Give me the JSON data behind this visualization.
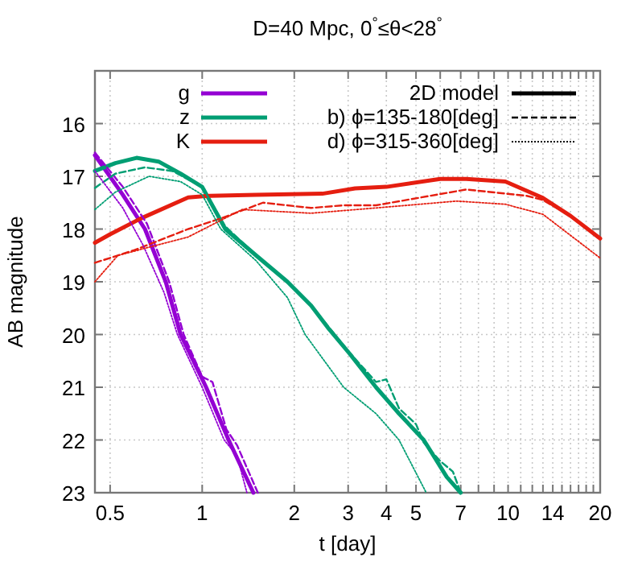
{
  "chart_data": {
    "type": "line",
    "title": "D=40 Mpc, 0$^{°}$≤θ<28$^{°}$",
    "xlabel": "t [day]",
    "ylabel": "AB magnitude",
    "log": "x",
    "grid": true,
    "legend": "top",
    "xlim": [
      0.446,
      20
    ],
    "ylim": [
      23,
      15
    ],
    "xticks": [
      0.5,
      1,
      2,
      3,
      4,
      5,
      {
        "value": 6,
        "label": null
      },
      7,
      {
        "value": 8,
        "label": null
      },
      {
        "value": 9,
        "label": null
      },
      10,
      {
        "value": 11,
        "label": null
      },
      {
        "value": 12,
        "label": null
      },
      {
        "value": 13,
        "label": null
      },
      14,
      {
        "value": 15,
        "label": null
      },
      {
        "value": 16,
        "label": null
      },
      {
        "value": 17,
        "label": null
      },
      {
        "value": 18,
        "label": null
      },
      {
        "value": 19,
        "label": null
      },
      20
    ],
    "yticks": [
      16,
      17,
      18,
      19,
      20,
      21,
      22,
      23
    ],
    "annotations": [
      "2D model",
      "b) ϕ=135-180[deg]",
      "d) ϕ=315-360[deg]"
    ],
    "series": [
      {
        "name": "g",
        "color": "#9400d3",
        "line_style": "solid",
        "x": [
          0.446,
          0.55,
          0.65,
          0.76,
          0.85,
          1.03,
          1.22,
          1.47
        ],
        "values": [
          16.6,
          17.35,
          18.0,
          19.0,
          20.0,
          21.0,
          22.0,
          23.0
        ]
      },
      {
        "name": "z",
        "color": "#009e73",
        "line_style": "solid",
        "x": [
          0.446,
          0.52,
          0.61,
          0.72,
          0.85,
          1.0,
          1.19,
          1.5,
          1.9,
          2.27,
          2.6,
          3.04,
          3.7,
          4.4,
          5.3,
          6.3,
          7.0
        ],
        "values": [
          16.9,
          16.75,
          16.65,
          16.72,
          16.95,
          17.2,
          18.0,
          18.5,
          19.0,
          19.45,
          19.9,
          20.37,
          21.0,
          21.5,
          22.0,
          22.7,
          23.0
        ]
      },
      {
        "name": "K",
        "color": "#e51e10",
        "line_style": "solid",
        "x": [
          0.446,
          0.5,
          0.63,
          0.9,
          1.06,
          1.5,
          2.47,
          3.16,
          4.0,
          6.0,
          7.3,
          9.8,
          12.9,
          16,
          20
        ],
        "values": [
          18.26,
          18.1,
          17.8,
          17.4,
          17.37,
          17.35,
          17.33,
          17.23,
          17.2,
          17.05,
          17.05,
          17.1,
          17.4,
          17.75,
          18.18
        ]
      },
      {
        "color": "#9400d3",
        "line_style": "dashed",
        "x": [
          0.446,
          0.55,
          0.66,
          0.78,
          0.87,
          1.0,
          1.08,
          1.2,
          1.3,
          1.52
        ],
        "values": [
          16.55,
          17.2,
          17.9,
          19.0,
          20.0,
          20.8,
          20.9,
          21.8,
          22.1,
          23.0
        ]
      },
      {
        "color": "#009e73",
        "line_style": "dashed",
        "x": [
          0.446,
          0.52,
          0.65,
          0.8,
          1.0,
          1.19,
          1.5,
          1.9,
          2.27,
          3.04,
          3.7,
          4.0,
          4.4,
          5.0,
          5.3,
          6.0,
          6.6,
          7.0
        ],
        "values": [
          17.22,
          16.95,
          16.83,
          16.9,
          17.2,
          17.95,
          18.5,
          19.0,
          19.45,
          20.35,
          20.9,
          20.85,
          21.4,
          21.7,
          22.05,
          22.4,
          22.6,
          23.0
        ]
      },
      {
        "color": "#e51e10",
        "line_style": "dashed",
        "x": [
          0.446,
          0.6,
          0.9,
          1.15,
          1.58,
          2.27,
          2.9,
          3.7,
          7.3,
          11.5,
          13,
          16,
          20
        ],
        "values": [
          18.64,
          18.4,
          18.0,
          17.8,
          17.5,
          17.6,
          17.55,
          17.55,
          17.25,
          17.37,
          17.45,
          17.75,
          18.2
        ]
      },
      {
        "color": "#9400d3",
        "line_style": "dotted",
        "x": [
          0.446,
          0.55,
          0.64,
          0.75,
          0.83,
          1.0,
          1.18,
          1.3,
          1.4
        ],
        "values": [
          16.9,
          17.6,
          18.3,
          19.2,
          20.0,
          21.0,
          22.0,
          22.3,
          23.0
        ]
      },
      {
        "color": "#009e73",
        "line_style": "dotted",
        "x": [
          0.446,
          0.52,
          0.67,
          0.85,
          1.0,
          1.15,
          1.5,
          1.9,
          2.17,
          2.9,
          3.7,
          4.4,
          5.4
        ],
        "values": [
          17.63,
          17.3,
          17.0,
          17.1,
          17.35,
          18.0,
          18.6,
          19.3,
          20.0,
          21.0,
          21.5,
          22.0,
          23.0
        ]
      },
      {
        "color": "#e51e10",
        "line_style": "dotted",
        "x": [
          0.446,
          0.53,
          0.9,
          1.35,
          2.27,
          3.7,
          6.8,
          9.8,
          13,
          20
        ],
        "values": [
          19.0,
          18.5,
          18.15,
          17.63,
          17.7,
          17.6,
          17.47,
          17.53,
          17.72,
          18.55
        ]
      }
    ]
  }
}
